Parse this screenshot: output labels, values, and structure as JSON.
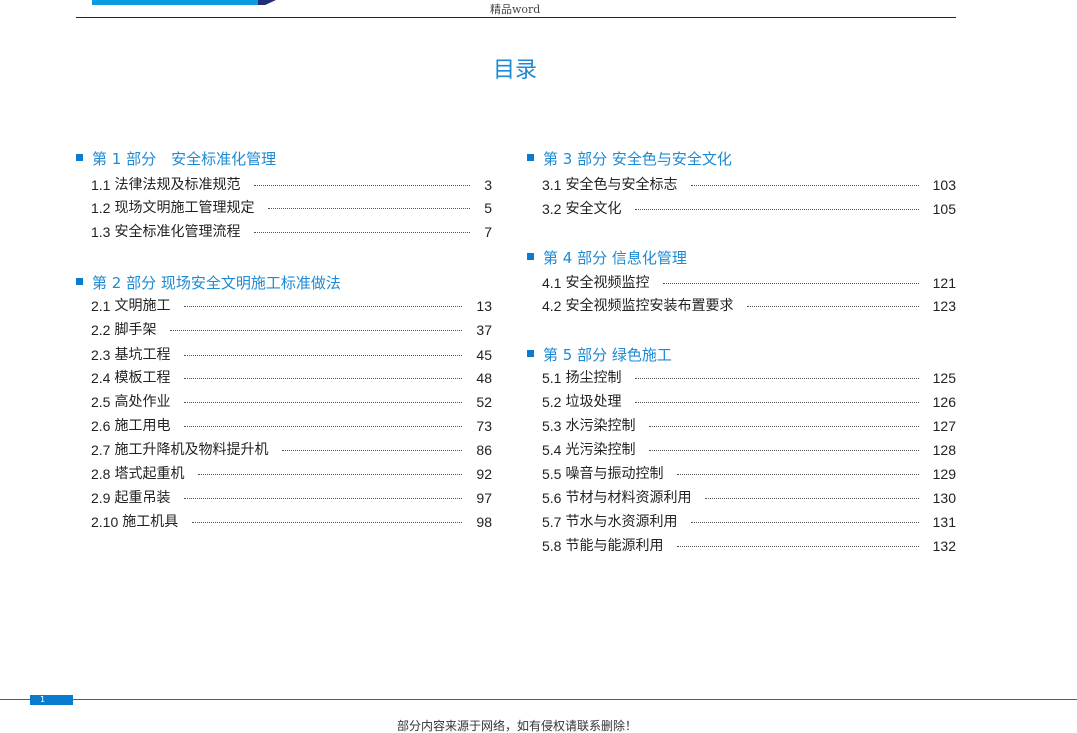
{
  "header": {
    "text": "精品word"
  },
  "title": "目录",
  "columns": [
    {
      "sections": [
        {
          "label": "第 1 部分　安全标准化管理",
          "entries": [
            {
              "num": "1.1",
              "label": "法律法规及标准规范",
              "page": "3"
            },
            {
              "num": "1.2",
              "label": "现场文明施工管理规定",
              "page": "5"
            },
            {
              "num": "1.3",
              "label": "安全标准化管理流程",
              "page": "7"
            }
          ]
        },
        {
          "label": "第 2 部分 现场安全文明施工标准做法",
          "entries": [
            {
              "num": "2.1",
              "label": "文明施工",
              "page": "13"
            },
            {
              "num": "2.2",
              "label": "脚手架",
              "page": "37"
            },
            {
              "num": "2.3",
              "label": "基坑工程",
              "page": "45"
            },
            {
              "num": "2.4",
              "label": "模板工程",
              "page": "48"
            },
            {
              "num": "2.5",
              "label": "高处作业",
              "page": "52"
            },
            {
              "num": "2.6",
              "label": "施工用电",
              "page": "73"
            },
            {
              "num": "2.7",
              "label": "施工升降机及物料提升机",
              "page": "86"
            },
            {
              "num": "2.8",
              "label": "塔式起重机",
              "page": "92"
            },
            {
              "num": "2.9",
              "label": "起重吊装",
              "page": "97"
            },
            {
              "num": "2.10",
              "label": "施工机具",
              "page": "98"
            }
          ]
        }
      ]
    },
    {
      "sections": [
        {
          "label": "第 3 部分 安全色与安全文化",
          "entries": [
            {
              "num": "3.1",
              "label": "安全色与安全标志",
              "page": "103"
            },
            {
              "num": "3.2",
              "label": "安全文化",
              "page": "105"
            }
          ]
        },
        {
          "label": "第 4 部分 信息化管理",
          "entries": [
            {
              "num": "4.1",
              "label": "安全视频监控",
              "page": "121"
            },
            {
              "num": "4.2",
              "label": "安全视频监控安装布置要求",
              "page": "123"
            }
          ]
        },
        {
          "label": "第 5 部分 绿色施工",
          "entries": [
            {
              "num": "5.1",
              "label": "扬尘控制",
              "page": "125"
            },
            {
              "num": "5.2",
              "label": "垃圾处理",
              "page": "126"
            },
            {
              "num": "5.3",
              "label": "水污染控制",
              "page": "127"
            },
            {
              "num": "5.4",
              "label": "光污染控制",
              "page": "128"
            },
            {
              "num": "5.5",
              "label": "噪音与振动控制",
              "page": "129"
            },
            {
              "num": "5.6",
              "label": "节材与材料资源利用",
              "page": "130"
            },
            {
              "num": "5.7",
              "label": "节水与水资源利用",
              "page": "131"
            },
            {
              "num": "5.8",
              "label": "节能与能源利用",
              "page": "132"
            }
          ]
        }
      ]
    }
  ],
  "footer": {
    "page_number": "1",
    "notice": "部分内容来源于网络，如有侵权请联系删除！"
  },
  "colors": {
    "accent": "#1c8ad4",
    "banner": "#0a9be0"
  }
}
